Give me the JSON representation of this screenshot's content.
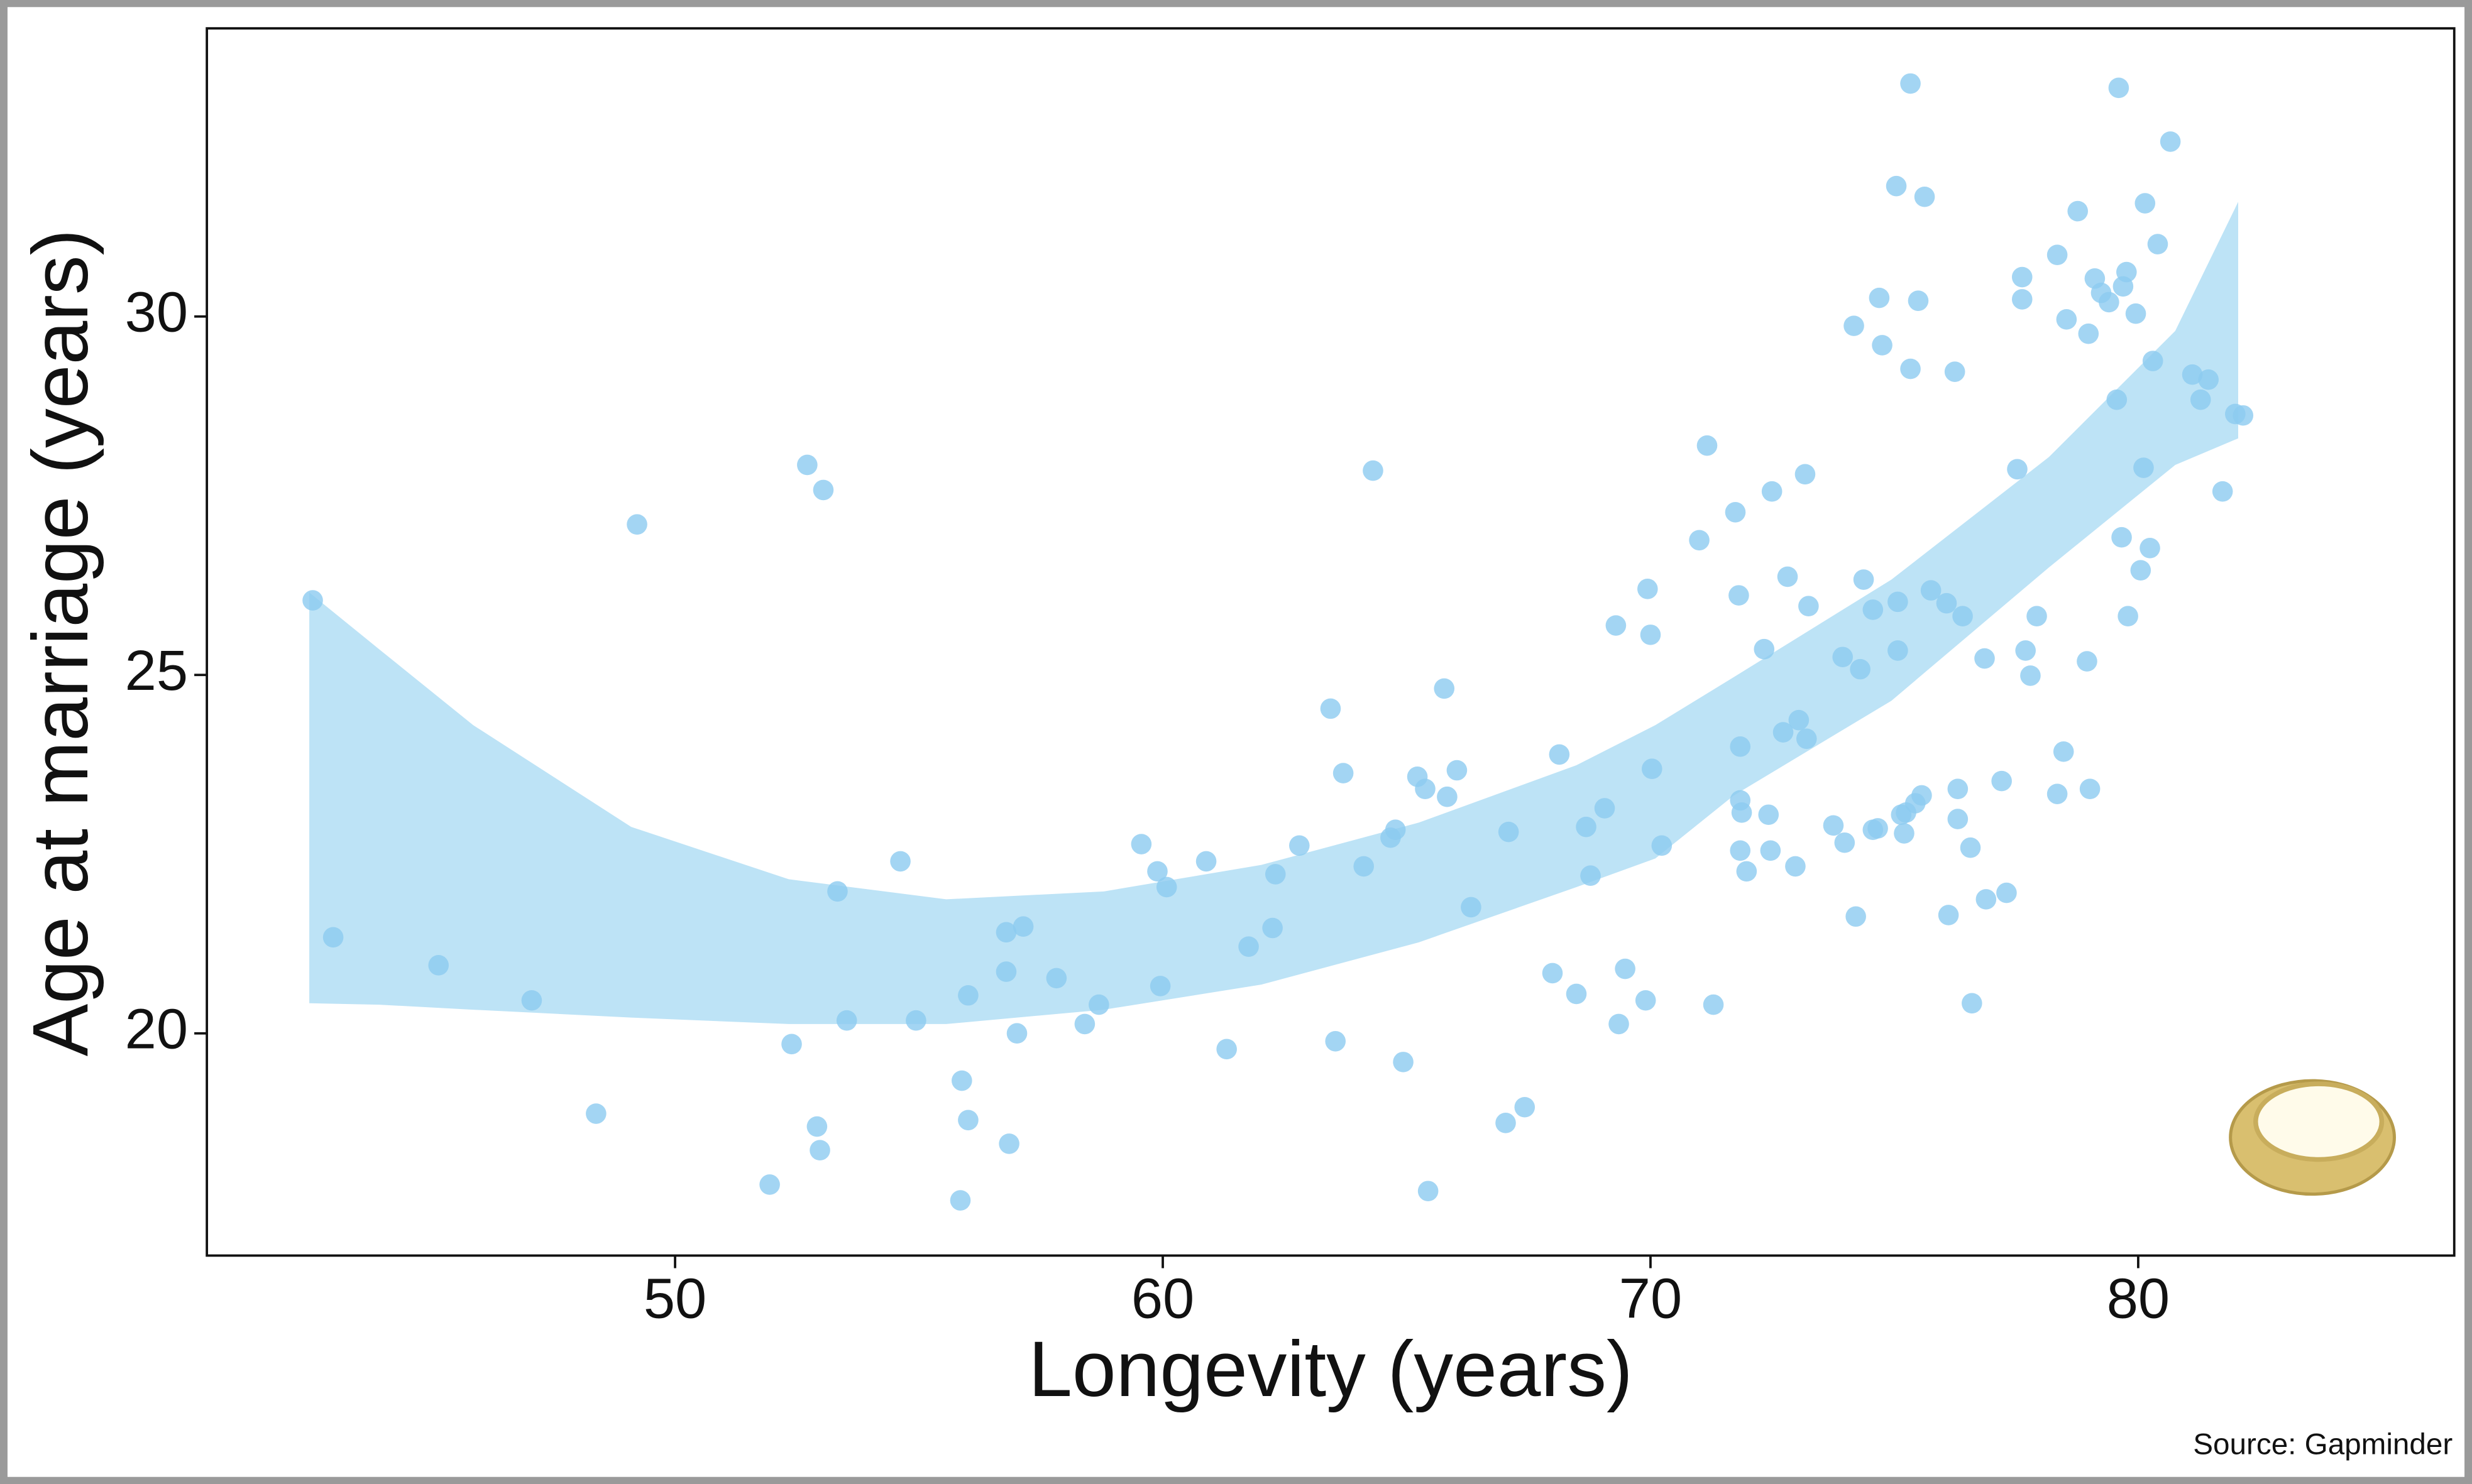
{
  "chart_data": {
    "type": "scatter",
    "x_label": "Longevity (years)",
    "y_label": "Age at marriage (years)",
    "source": "Source: Gapminder",
    "color": "#8ccbf0",
    "band_color": "#bde3f6",
    "xlim": [
      40.4,
      86.48
    ],
    "ylim": [
      16.9,
      34.02
    ],
    "xticks": [
      50,
      60,
      70,
      80
    ],
    "yticks": [
      20,
      25,
      30
    ],
    "grid": false,
    "band": {
      "x": [
        42.5,
        43.93,
        45.86,
        49.1,
        52.33,
        55.56,
        58.79,
        62.02,
        65.25,
        68.48,
        70.1,
        71.71,
        74.94,
        78.17,
        80.76,
        82.05
      ],
      "upper": [
        26.15,
        25.36,
        24.3,
        22.88,
        22.15,
        21.87,
        21.98,
        22.35,
        22.94,
        23.74,
        24.3,
        24.97,
        26.33,
        28.04,
        29.8,
        31.6
      ],
      "lower": [
        20.42,
        20.4,
        20.33,
        20.22,
        20.13,
        20.13,
        20.33,
        20.68,
        21.27,
        22.04,
        22.44,
        23.32,
        24.64,
        26.5,
        27.93,
        28.3
      ]
    },
    "x": [
      42.57,
      42.99,
      45.15,
      47.06,
      48.38,
      49.22,
      51.94,
      52.39,
      52.71,
      53.04,
      52.91,
      52.97,
      53.33,
      53.52,
      54.62,
      54.94,
      55.85,
      55.88,
      56.01,
      56.01,
      56.79,
      56.79,
      56.85,
      57.01,
      57.14,
      57.82,
      58.4,
      58.69,
      59.56,
      59.89,
      59.95,
      60.08,
      60.89,
      61.31,
      61.76,
      62.25,
      62.31,
      62.8,
      63.44,
      63.54,
      63.7,
      64.12,
      64.31,
      64.67,
      64.77,
      64.93,
      65.22,
      65.38,
      65.44,
      65.77,
      65.83,
      66.03,
      66.32,
      67.03,
      67.09,
      67.42,
      67.99,
      68.13,
      68.48,
      68.68,
      68.77,
      69.06,
      69.29,
      69.35,
      69.48,
      69.9,
      69.94,
      70.0,
      70.03,
      70.23,
      71.0,
      71.16,
      71.29,
      71.74,
      71.81,
      71.84,
      71.84,
      71.87,
      71.84,
      71.97,
      72.33,
      72.42,
      72.46,
      72.49,
      72.72,
      72.81,
      72.97,
      73.04,
      73.17,
      73.2,
      73.24,
      73.75,
      73.94,
      73.98,
      74.17,
      74.21,
      74.3,
      74.37,
      74.56,
      74.56,
      74.66,
      74.69,
      74.75,
      75.04,
      75.07,
      75.07,
      75.14,
      75.2,
      75.24,
      75.33,
      75.33,
      75.43,
      75.49,
      75.56,
      75.62,
      75.75,
      76.07,
      76.11,
      76.24,
      76.3,
      76.3,
      76.4,
      76.56,
      76.59,
      76.85,
      76.88,
      77.2,
      77.3,
      77.52,
      77.62,
      77.62,
      77.69,
      77.79,
      77.92,
      78.34,
      78.34,
      78.47,
      78.53,
      78.76,
      78.95,
      78.98,
      79.01,
      79.11,
      79.24,
      79.4,
      79.56,
      79.6,
      79.66,
      79.69,
      79.76,
      79.79,
      79.95,
      80.05,
      80.11,
      80.14,
      80.24,
      80.3,
      80.4,
      80.66,
      81.11,
      81.28,
      81.44,
      81.73,
      81.99,
      82.15
    ],
    "values": [
      26.04,
      21.34,
      20.95,
      20.46,
      18.88,
      27.1,
      17.89,
      19.85,
      27.93,
      27.58,
      18.7,
      18.37,
      21.98,
      20.18,
      22.4,
      20.18,
      17.67,
      19.34,
      20.53,
      18.79,
      21.41,
      20.86,
      18.46,
      20.0,
      21.49,
      20.77,
      20.13,
      20.4,
      22.64,
      22.26,
      20.66,
      22.04,
      22.4,
      19.78,
      21.21,
      21.47,
      22.22,
      22.62,
      24.53,
      19.89,
      23.63,
      22.33,
      27.85,
      22.73,
      22.84,
      19.6,
      23.58,
      23.41,
      17.8,
      24.81,
      23.3,
      23.67,
      21.76,
      18.75,
      22.81,
      18.97,
      20.84,
      23.89,
      20.55,
      22.88,
      22.2,
      23.14,
      25.69,
      20.13,
      20.9,
      20.46,
      26.2,
      25.56,
      23.69,
      22.62,
      26.88,
      28.2,
      20.4,
      27.27,
      26.11,
      24.0,
      23.25,
      23.08,
      22.55,
      22.26,
      25.36,
      23.05,
      22.55,
      27.56,
      24.2,
      26.37,
      22.33,
      24.37,
      27.8,
      24.11,
      25.96,
      22.9,
      25.25,
      22.66,
      29.87,
      21.63,
      25.08,
      26.33,
      22.84,
      25.91,
      22.86,
      30.26,
      29.6,
      31.82,
      26.02,
      25.34,
      23.05,
      22.79,
      23.08,
      33.25,
      29.27,
      23.21,
      30.22,
      23.32,
      31.67,
      26.18,
      26.0,
      21.65,
      29.23,
      23.41,
      22.99,
      25.82,
      22.59,
      20.42,
      25.23,
      21.87,
      23.52,
      21.96,
      27.87,
      30.55,
      30.24,
      25.34,
      24.99,
      25.82,
      23.34,
      30.86,
      23.93,
      29.96,
      31.47,
      25.19,
      29.76,
      23.41,
      30.53,
      30.33,
      30.2,
      28.84,
      33.19,
      26.92,
      30.42,
      30.62,
      25.82,
      30.04,
      26.46,
      27.89,
      31.58,
      26.77,
      29.38,
      31.01,
      32.44,
      29.19,
      28.84,
      29.12,
      27.56,
      28.64,
      28.62
    ]
  }
}
